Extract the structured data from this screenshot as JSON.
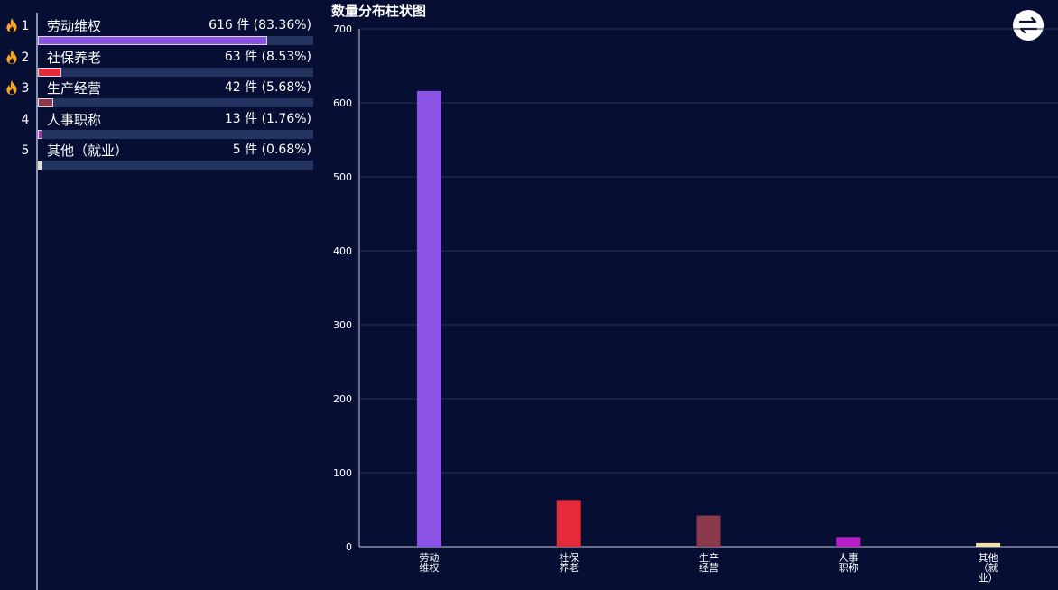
{
  "ranking": {
    "items": [
      {
        "rank": "1",
        "name": "劳动维权",
        "value": "616 件 (83.36%)",
        "share": 0.8336,
        "color": "#8b52e6",
        "hot": true
      },
      {
        "rank": "2",
        "name": "社保养老",
        "value": "63 件 (8.53%)",
        "share": 0.0853,
        "color": "#e52b3a",
        "hot": true
      },
      {
        "rank": "3",
        "name": "生产经营",
        "value": "42 件 (5.68%)",
        "share": 0.0568,
        "color": "#8a3a4b",
        "hot": true
      },
      {
        "rank": "4",
        "name": "人事职称",
        "value": "13 件 (1.76%)",
        "share": 0.0176,
        "color": "#b81fc6",
        "hot": false
      },
      {
        "rank": "5",
        "name": "其他（就业）",
        "value": "5 件 (0.68%)",
        "share": 0.0068,
        "color": "#f3e2a9",
        "hot": false
      }
    ]
  },
  "icons": {
    "fire": "fire-icon",
    "toggle": "swap-arrows-icon"
  },
  "chart_data": {
    "type": "bar",
    "title": "数量分布柱状图",
    "categories": [
      [
        "劳动",
        "维权"
      ],
      [
        "社保",
        "养老"
      ],
      [
        "生产",
        "经营"
      ],
      [
        "人事",
        "职称"
      ],
      [
        "其他",
        "（就",
        "业）"
      ]
    ],
    "values": [
      616,
      63,
      42,
      13,
      5
    ],
    "colors": [
      "#8b52e6",
      "#e52b3a",
      "#8a3a4b",
      "#b81fc6",
      "#f3e2a9"
    ],
    "ylim": [
      0,
      700
    ],
    "yticks": [
      "0",
      "100",
      "200",
      "300",
      "400",
      "500",
      "600",
      "700"
    ],
    "xlabel": "",
    "ylabel": "",
    "grid": true,
    "legend": "none"
  }
}
